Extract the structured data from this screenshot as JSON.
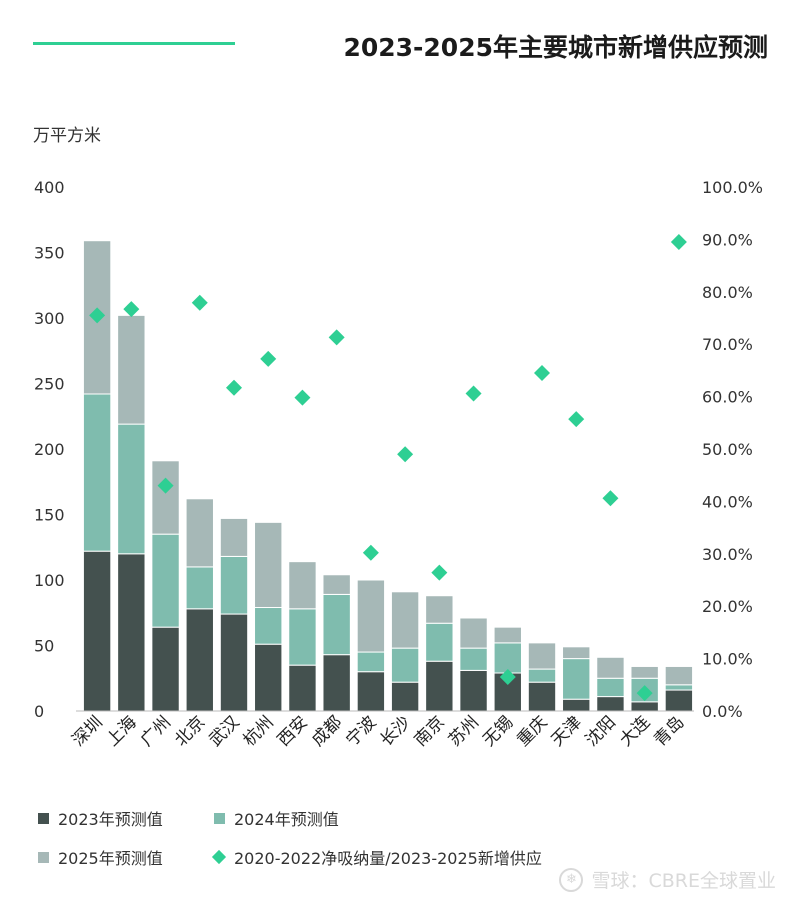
{
  "header": {
    "title": "2023-2025年主要城市新增供应预测",
    "accent_color": "#2ecf93"
  },
  "chart_data": {
    "type": "bar",
    "stacked": true,
    "title": "2023-2025年主要城市新增供应预测",
    "ylabel": "万平方米",
    "ylim": [
      0,
      400
    ],
    "yticks": [
      "0",
      "50",
      "100",
      "150",
      "200",
      "250",
      "300",
      "350",
      "400"
    ],
    "y2lim": [
      0,
      100
    ],
    "y2ticks": [
      "0.0%",
      "10.0%",
      "20.0%",
      "30.0%",
      "40.0%",
      "50.0%",
      "60.0%",
      "70.0%",
      "80.0%",
      "90.0%",
      "100.0%"
    ],
    "categories": [
      "深圳",
      "上海",
      "广州",
      "北京",
      "武汉",
      "杭州",
      "西安",
      "成都",
      "宁波",
      "长沙",
      "南京",
      "苏州",
      "无锡",
      "重庆",
      "天津",
      "沈阳",
      "大连",
      "青岛"
    ],
    "series": [
      {
        "name": "2023年预测值",
        "kind": "bar",
        "color": "#44514f",
        "values": [
          122,
          120,
          64,
          78,
          74,
          51,
          35,
          43,
          30,
          22,
          38,
          31,
          29,
          22,
          9,
          11,
          7,
          16
        ]
      },
      {
        "name": "2024年预测值",
        "kind": "bar",
        "color": "#7fbcae",
        "values": [
          120,
          99,
          71,
          32,
          44,
          28,
          43,
          46,
          15,
          26,
          29,
          17,
          23,
          10,
          31,
          14,
          18,
          4
        ]
      },
      {
        "name": "2025年预测值",
        "kind": "bar",
        "color": "#a6b8b7",
        "values": [
          117,
          83,
          56,
          52,
          29,
          65,
          36,
          15,
          55,
          43,
          21,
          23,
          12,
          20,
          9,
          16,
          9,
          14
        ]
      },
      {
        "name": "2020-2022净吸纳量/2023-2025新增供应",
        "kind": "scatter",
        "axis": "right",
        "color": "#2ecf93",
        "values": [
          75.5,
          76.7,
          43.0,
          77.9,
          61.7,
          67.2,
          59.8,
          71.3,
          30.2,
          49.0,
          26.4,
          60.6,
          6.5,
          64.5,
          55.7,
          40.6,
          3.4,
          89.5
        ]
      }
    ],
    "legend_position": "bottom",
    "grid": false
  },
  "legend": [
    {
      "label": "2023年预测值",
      "color": "#44514f",
      "shape": "square"
    },
    {
      "label": "2024年预测值",
      "color": "#7fbcae",
      "shape": "square"
    },
    {
      "label": "2025年预测值",
      "color": "#a6b8b7",
      "shape": "square"
    },
    {
      "label": "2020-2022净吸纳量/2023-2025新增供应",
      "color": "#2ecf93",
      "shape": "diamond"
    }
  ],
  "watermark": {
    "text": "雪球：CBRE全球置业",
    "icon": "snowball-logo-icon"
  }
}
